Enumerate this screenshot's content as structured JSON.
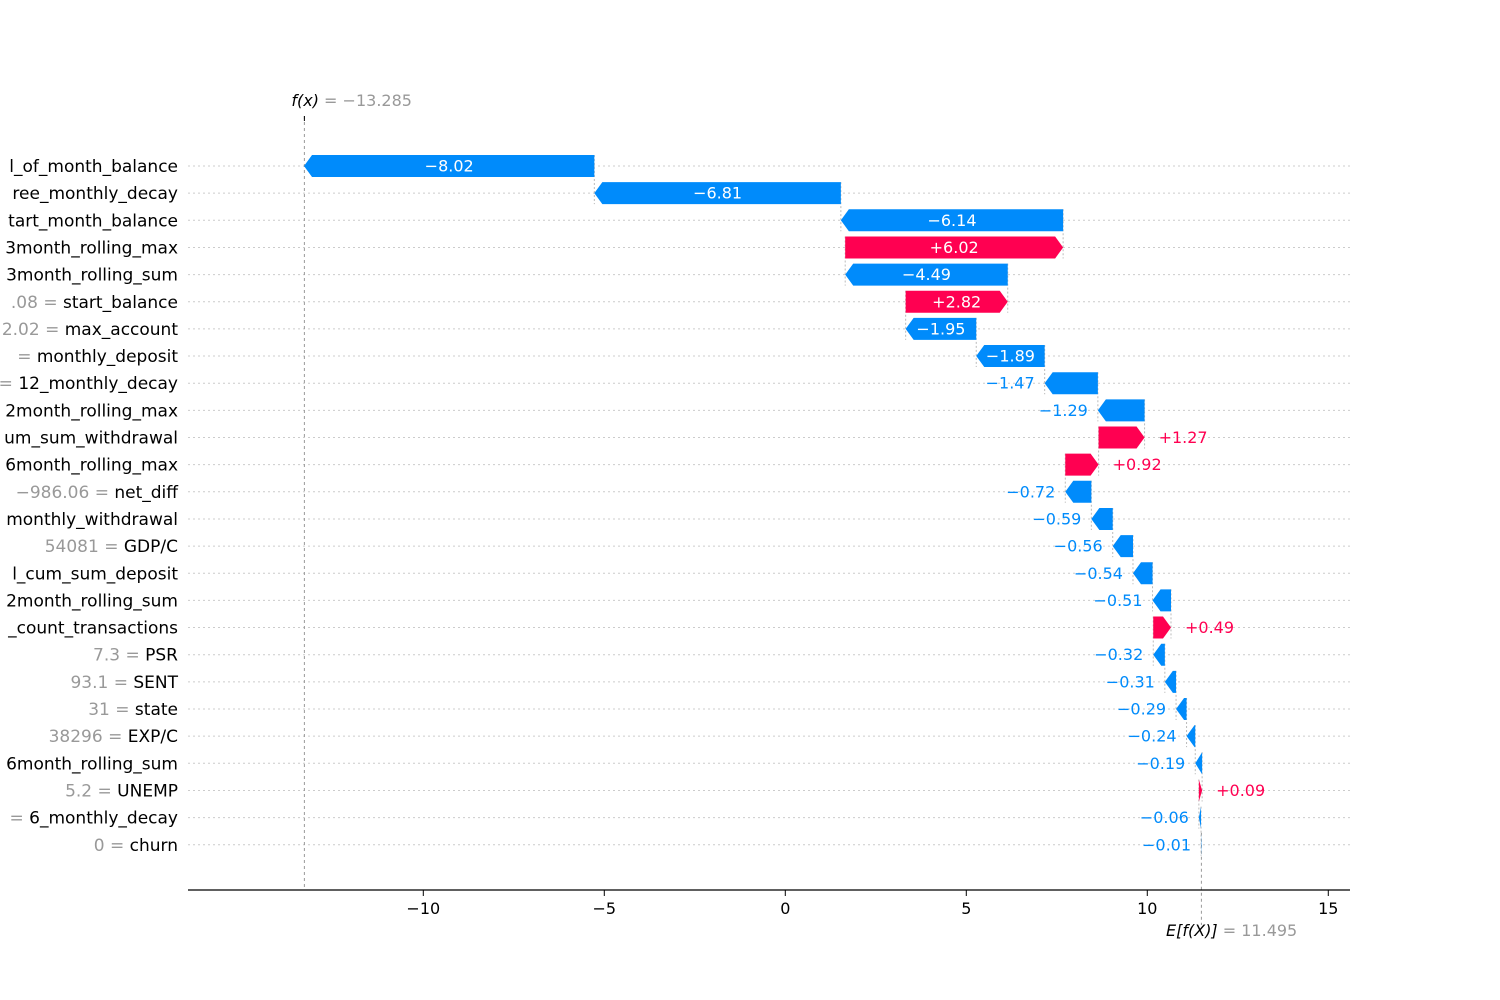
{
  "chart_data": {
    "type": "waterfall",
    "base_value": 11.495,
    "output_value": -13.285,
    "fx_label": {
      "prefix": "f(x)",
      "value_text": " = −13.285"
    },
    "efx_label": {
      "prefix": "E[f(X)]",
      "value_text": " = 11.495"
    },
    "x_ticks": [
      -10,
      -5,
      0,
      5,
      10,
      15
    ],
    "x_tick_labels": [
      "−10",
      "−5",
      "0",
      "5",
      "10",
      "15"
    ],
    "xlim": [
      -16.5,
      15.6
    ],
    "colors": {
      "positive": "#ff0051",
      "negative": "#008bfb",
      "positive_text": "#ff0051",
      "negative_text": "#008bfb",
      "value_gray": "#999999"
    },
    "features": [
      {
        "value_text": "",
        "name": "l_of_month_balance",
        "shap": -8.02,
        "label": "−8.02"
      },
      {
        "value_text": "",
        "name": "ree_monthly_decay",
        "shap": -6.81,
        "label": "−6.81"
      },
      {
        "value_text": "",
        "name": "tart_month_balance",
        "shap": -6.14,
        "label": "−6.14"
      },
      {
        "value_text": "",
        "name": "3month_rolling_max",
        "shap": 6.02,
        "label": "+6.02"
      },
      {
        "value_text": "",
        "name": "3month_rolling_sum",
        "shap": -4.49,
        "label": "−4.49"
      },
      {
        "value_text": ".08 = ",
        "name": "start_balance",
        "shap": 2.82,
        "label": "+2.82"
      },
      {
        "value_text": "2.02 = ",
        "name": "max_account",
        "shap": -1.95,
        "label": "−1.95"
      },
      {
        "value_text": "= ",
        "name": "monthly_deposit",
        "shap": -1.89,
        "label": "−1.89"
      },
      {
        "value_text": "= ",
        "name": "12_monthly_decay",
        "shap": -1.47,
        "label": "−1.47"
      },
      {
        "value_text": "",
        "name": "2month_rolling_max",
        "shap": -1.29,
        "label": "−1.29"
      },
      {
        "value_text": "",
        "name": "um_sum_withdrawal",
        "shap": 1.27,
        "label": "+1.27"
      },
      {
        "value_text": "",
        "name": "6month_rolling_max",
        "shap": 0.92,
        "label": "+0.92"
      },
      {
        "value_text": "−986.06 = ",
        "name": "net_diff",
        "shap": -0.72,
        "label": "−0.72"
      },
      {
        "value_text": "",
        "name": "monthly_withdrawal",
        "shap": -0.59,
        "label": "−0.59"
      },
      {
        "value_text": "54081 = ",
        "name": "GDP/C",
        "shap": -0.56,
        "label": "−0.56"
      },
      {
        "value_text": "",
        "name": "l_cum_sum_deposit",
        "shap": -0.54,
        "label": "−0.54"
      },
      {
        "value_text": "",
        "name": "2month_rolling_sum",
        "shap": -0.51,
        "label": "−0.51"
      },
      {
        "value_text": "",
        "name": "_count_transactions",
        "shap": 0.49,
        "label": "+0.49"
      },
      {
        "value_text": "7.3 = ",
        "name": "PSR",
        "shap": -0.32,
        "label": "−0.32"
      },
      {
        "value_text": "93.1 = ",
        "name": "SENT",
        "shap": -0.31,
        "label": "−0.31"
      },
      {
        "value_text": "31 = ",
        "name": "state",
        "shap": -0.29,
        "label": "−0.29"
      },
      {
        "value_text": "38296 = ",
        "name": "EXP/C",
        "shap": -0.24,
        "label": "−0.24"
      },
      {
        "value_text": "",
        "name": "6month_rolling_sum",
        "shap": -0.19,
        "label": "−0.19"
      },
      {
        "value_text": "5.2 = ",
        "name": "UNEMP",
        "shap": 0.09,
        "label": "+0.09"
      },
      {
        "value_text": "= ",
        "name": "6_monthly_decay",
        "shap": -0.06,
        "label": "−0.06"
      },
      {
        "value_text": "0 = ",
        "name": "churn",
        "shap": -0.01,
        "label": "−0.01"
      }
    ]
  }
}
